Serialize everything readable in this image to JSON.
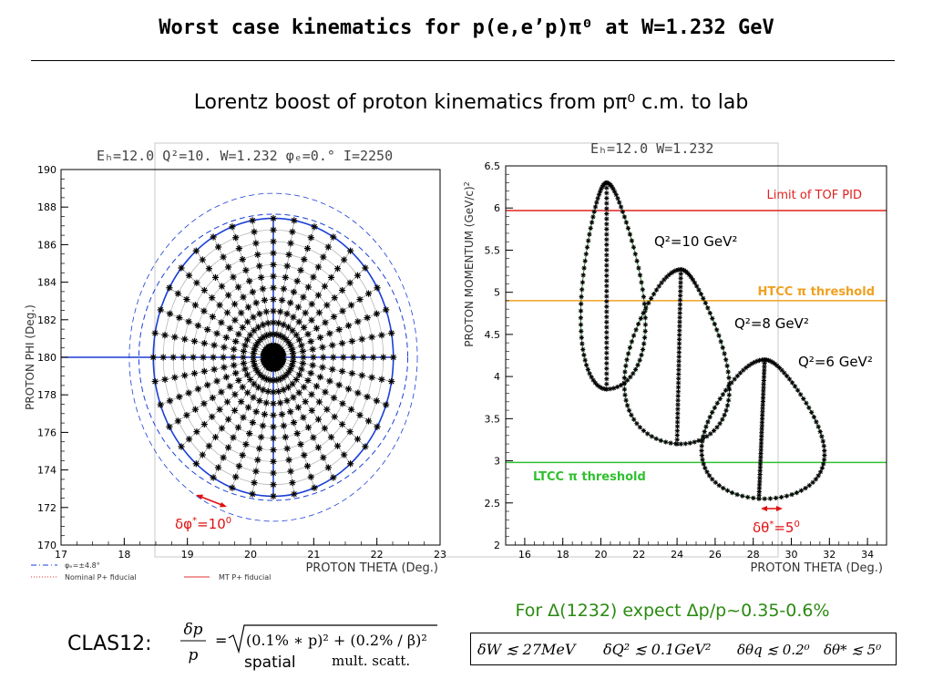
{
  "header": {
    "title": "Worst case kinematics for p(e,e’p)π⁰ at W=1.232 GeV",
    "subtitle": "Lorentz boost of proton kinematics from  pπ⁰ c.m. to lab"
  },
  "colors": {
    "circle_blue": "#1a3fd6",
    "marker": "#000000",
    "green_curve": "#2e8b3a",
    "tof_red": "#e02020",
    "htcc_orange": "#f0a020",
    "ltcc_green": "#30c030",
    "accent_red": "#e01010",
    "eq_green": "#2a8a10"
  },
  "chart_data": [
    {
      "type": "scatter",
      "header_text": "Eₕ=12.0  Q²=10.  W=1.232  φₑ=0.°  I=2250",
      "xlabel": "PROTON THETA (Deg.)",
      "ylabel": "PROTON PHI (Deg.)",
      "xlim": [
        17,
        23
      ],
      "ylim": [
        170,
        190
      ],
      "xticks": [
        "17",
        "18",
        "19",
        "20",
        "21",
        "22",
        "23"
      ],
      "yticks": [
        "170",
        "172",
        "174",
        "176",
        "178",
        "180",
        "182",
        "184",
        "186",
        "188",
        "190"
      ],
      "center": [
        20.36,
        180.0
      ],
      "outer_radius_theta": 1.9,
      "outer_radius_phi": 7.4,
      "rings": 12,
      "spokes": 36,
      "legend": [
        {
          "label": "φₑ=±4.8°",
          "style": "dash-dot"
        },
        {
          "label": "Nominal P+ fiducial",
          "style": "dotted"
        },
        {
          "label": "MT P+ fiducial",
          "style": "solid"
        }
      ],
      "annotation": {
        "text": "δφ",
        "sup": "*",
        "value": "=10",
        "value_sup": "0"
      }
    },
    {
      "type": "scatter",
      "header_text": "Eₕ=12.0  W=1.232",
      "xlabel": "PROTON THETA (Deg.)",
      "ylabel": "PROTON MOMENTUM (GeV/c)",
      "xlim": [
        15,
        35
      ],
      "ylim": [
        2,
        6.5
      ],
      "xticks": [
        "16",
        "18",
        "20",
        "22",
        "24",
        "26",
        "28",
        "30",
        "32",
        "34"
      ],
      "yticks": [
        "2",
        "2.5",
        "3",
        "3.5",
        "4",
        "4.5",
        "5",
        "5.5",
        "6",
        "6.5"
      ],
      "series": [
        {
          "name": "Q²=10 GeV²",
          "theta_min": 18.7,
          "theta_max": 22.7,
          "p_min": 3.85,
          "p_max": 6.3,
          "theta_at_pmax": 20.3,
          "theta_at_pmin": 20.3
        },
        {
          "name": "Q²=8 GeV²",
          "theta_min": 20.7,
          "theta_max": 27.2,
          "p_min": 3.2,
          "p_max": 5.27,
          "theta_at_pmax": 24.2,
          "theta_at_pmin": 24.0
        },
        {
          "name": "Q²=6 GeV²",
          "theta_min": 24.7,
          "theta_max": 32.3,
          "p_min": 2.55,
          "p_max": 4.2,
          "theta_at_pmax": 28.6,
          "theta_at_pmin": 28.3
        }
      ],
      "thresholds": [
        {
          "name": "Limit of TOF PID",
          "p": 5.97
        },
        {
          "name": "HTCC π threshold",
          "p": 4.9
        },
        {
          "name": "LTCC π threshold",
          "p": 2.98
        }
      ],
      "annotation": {
        "text": "δθ",
        "sup": "*",
        "value": "=5",
        "value_sup": "0"
      }
    }
  ],
  "footer": {
    "delta_statement": "For Δ(1232) expect Δp/p~0.35-0.6%",
    "clas_label": "CLAS12:",
    "resolution_formula": {
      "lhs_num": "δp",
      "lhs_den": "p",
      "rhs": "(0.1% ∗ p)² + (0.2% / β)²",
      "term1_caption": "spatial",
      "term2_caption": "mult. scatt."
    },
    "requirements": [
      "δW  ≲ 27MeV",
      "δQ² ≲ 0.1GeV²",
      "δθq ≲ 0.2⁰",
      "δθ* ≲ 5⁰"
    ]
  }
}
